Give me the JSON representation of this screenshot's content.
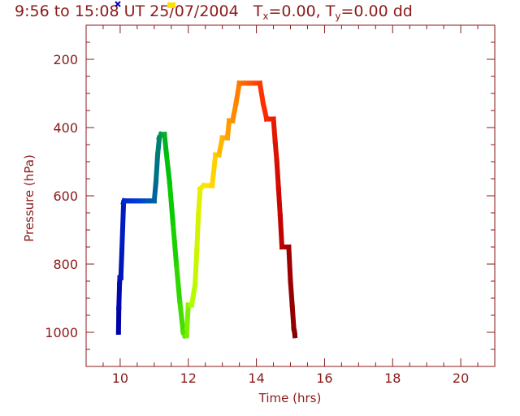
{
  "title": {
    "prefix": "9:56 to 15:08 UT 25/07/2004",
    "tx_label": "T",
    "tx_sub": "x",
    "tx_value": "=0.00, ",
    "ty_label": "T",
    "ty_sub": "y",
    "ty_value": "=0.00 dd"
  },
  "colors": {
    "axis": "#8b1a1a",
    "start_marker": "#0000aa",
    "end_marker": "#ffe000"
  },
  "chart_data": {
    "type": "line",
    "xlabel": "Time  (hrs)",
    "ylabel": "Pressure  (hPa)",
    "xlim": [
      9,
      21
    ],
    "ylim": [
      1100,
      100
    ],
    "y_inverted": true,
    "xticks": [
      "10",
      "12",
      "14",
      "16",
      "18",
      "20"
    ],
    "yticks": [
      "200",
      "400",
      "600",
      "800",
      "1000"
    ],
    "grid": false,
    "series": [
      {
        "color_scale": "time (blue → green → yellow → orange → red → dark red)",
        "x": [
          9.95,
          9.96,
          9.98,
          9.99,
          10.02,
          10.05,
          10.1,
          10.12,
          10.15,
          10.25,
          10.4,
          10.55,
          10.7,
          10.85,
          11.0,
          11.05,
          11.1,
          11.15,
          11.2,
          11.25,
          11.3,
          11.35,
          11.45,
          11.55,
          11.65,
          11.75,
          11.85,
          11.9,
          11.95,
          12.0,
          12.05,
          12.1,
          12.2,
          12.25,
          12.3,
          12.35,
          12.45,
          12.55,
          12.7,
          12.8,
          12.85,
          12.9,
          13.0,
          13.1,
          13.15,
          13.2,
          13.3,
          13.4,
          13.5,
          13.55,
          13.6,
          13.7,
          13.8,
          13.9,
          14.0,
          14.1,
          14.2,
          14.3,
          14.4,
          14.5,
          14.55,
          14.6,
          14.65,
          14.7,
          14.75,
          14.8,
          14.85,
          14.9,
          14.95,
          15.0,
          15.05,
          15.1,
          15.12,
          15.13
        ],
        "y": [
          1000,
          930,
          860,
          840,
          840,
          760,
          620,
          615,
          615,
          615,
          615,
          615,
          615,
          615,
          615,
          560,
          480,
          430,
          420,
          420,
          420,
          470,
          560,
          680,
          800,
          910,
          1000,
          1010,
          1010,
          920,
          920,
          920,
          860,
          760,
          650,
          580,
          570,
          570,
          570,
          480,
          480,
          480,
          430,
          430,
          430,
          380,
          380,
          330,
          270,
          270,
          270,
          270,
          270,
          270,
          270,
          270,
          330,
          375,
          375,
          375,
          440,
          500,
          580,
          660,
          750,
          750,
          750,
          750,
          750,
          850,
          920,
          990,
          1000,
          1010
        ]
      }
    ]
  }
}
